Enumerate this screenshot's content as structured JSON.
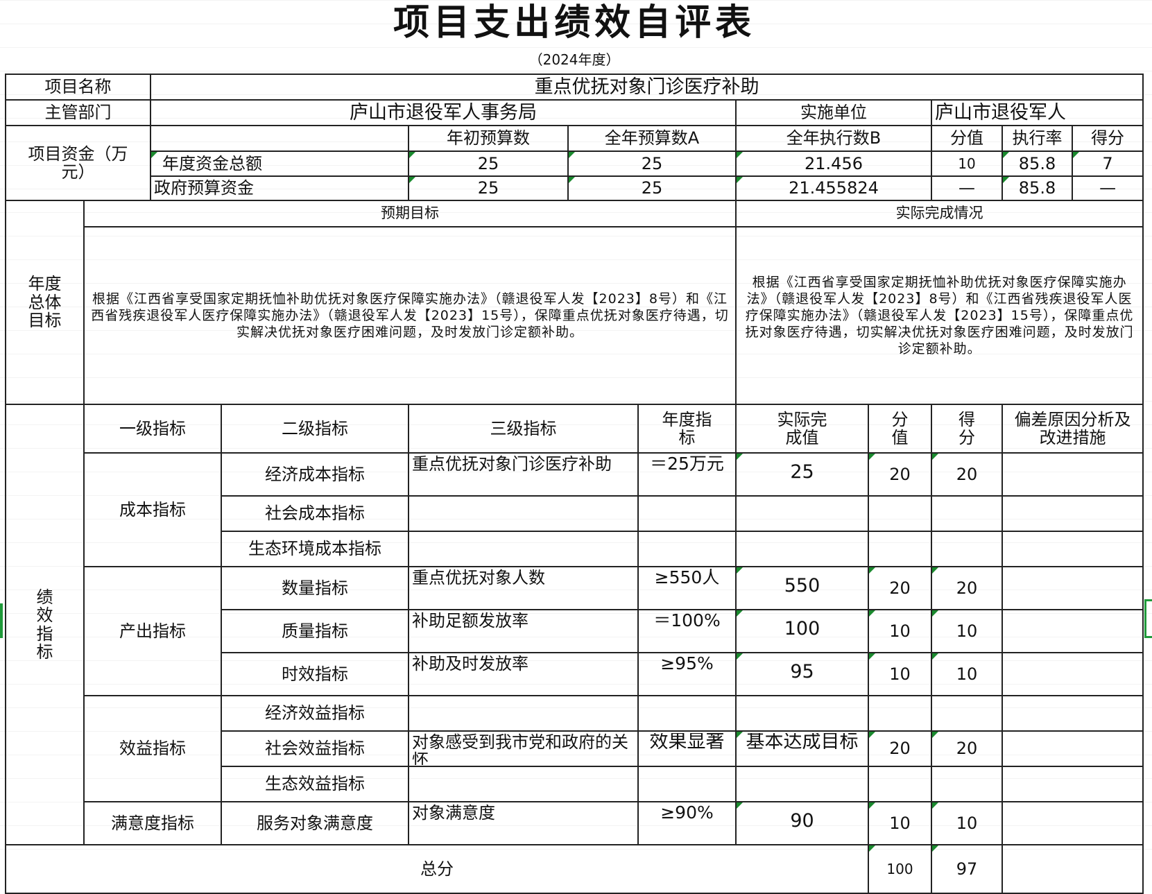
{
  "title": "项目支出绩效自评表",
  "year": "（2024年度）",
  "project": {
    "name_label": "项目名称",
    "name": "重点优抚对象门诊医疗补助",
    "dept_label": "主管部门",
    "dept": "庐山市退役军人事务局",
    "impl_label": "实施单位",
    "impl": "庐山市退役军人"
  },
  "funds": {
    "label": "项目资金（万元）",
    "headers": [
      "年初预算数",
      "全年预算数A",
      "全年执行数B",
      "分值",
      "执行率",
      "得分"
    ],
    "rows": [
      {
        "name": "年度资金总额",
        "initial": "25",
        "annual": "25",
        "executed": "21.456",
        "score_value": "10",
        "rate": "85.8",
        "score": "7"
      },
      {
        "name": "政府预算资金",
        "initial": "25",
        "annual": "25",
        "executed": "21.455824",
        "score_value": "—",
        "rate": "85.8",
        "score": "—"
      }
    ]
  },
  "goals": {
    "label": "年度总体目标",
    "expected_label": "预期目标",
    "actual_label": "实际完成情况",
    "expected": "根据《江西省享受国家定期抚恤补助优抚对象医疗保障实施办法》（赣退役军人发【2023】8号）和《江西省残疾退役军人医疗保障实施办法》（赣退役军人发【2023】15号），保障重点优抚对象医疗待遇，切实解决优抚对象医疗困难问题，及时发放门诊定额补助。",
    "actual": "根据《江西省享受国家定期抚恤补助优抚对象医疗保障实施办法》（赣退役军人发【2023】8号）和《江西省残疾退役军人医疗保障实施办法》（赣退役军人发【2023】15号），保障重点优抚对象医疗待遇，切实解决优抚对象医疗困难问题，及时发放门诊定额补助。"
  },
  "kpi": {
    "label": "绩效指标",
    "headers": [
      "一级指标",
      "二级指标",
      "三级指标",
      "年度指标",
      "实际完成值",
      "分值",
      "得分",
      "偏差原因分析及改进措施"
    ],
    "groups": [
      {
        "level1": "成本指标",
        "rows": [
          {
            "level2": "经济成本指标",
            "level3": "重点优抚对象门诊医疗补助",
            "target": "＝25万元",
            "actual": "25",
            "value": "20",
            "score": "20",
            "note": ""
          },
          {
            "level2": "社会成本指标",
            "level3": "",
            "target": "",
            "actual": "",
            "value": "",
            "score": "",
            "note": ""
          },
          {
            "level2": "生态环境成本指标",
            "level3": "",
            "target": "",
            "actual": "",
            "value": "",
            "score": "",
            "note": ""
          }
        ]
      },
      {
        "level1": "产出指标",
        "rows": [
          {
            "level2": "数量指标",
            "level3": "重点优抚对象人数",
            "target": "≥550人",
            "actual": "550",
            "value": "20",
            "score": "20",
            "note": ""
          },
          {
            "level2": "质量指标",
            "level3": "补助足额发放率",
            "target": "＝100%",
            "actual": "100",
            "value": "10",
            "score": "10",
            "note": ""
          },
          {
            "level2": "时效指标",
            "level3": "补助及时发放率",
            "target": "≥95%",
            "actual": "95",
            "value": "10",
            "score": "10",
            "note": ""
          }
        ]
      },
      {
        "level1": "效益指标",
        "rows": [
          {
            "level2": "经济效益指标",
            "level3": "",
            "target": "",
            "actual": "",
            "value": "",
            "score": "",
            "note": ""
          },
          {
            "level2": "社会效益指标",
            "level3": "对象感受到我市党和政府的关怀",
            "target": "效果显著",
            "actual": "基本达成目标",
            "value": "20",
            "score": "20",
            "note": ""
          },
          {
            "level2": "生态效益指标",
            "level3": "",
            "target": "",
            "actual": "",
            "value": "",
            "score": "",
            "note": ""
          }
        ]
      },
      {
        "level1": "满意度指标",
        "rows": [
          {
            "level2": "服务对象满意度",
            "level3": "对象满意度",
            "target": "≥90%",
            "actual": "90",
            "value": "10",
            "score": "10",
            "note": ""
          }
        ]
      }
    ],
    "total_label": "总分",
    "total_value": "100",
    "total_score": "97"
  },
  "colors": {
    "border": "#222222",
    "marker": "#1a8a2e",
    "selection": "#1f9a3a"
  }
}
